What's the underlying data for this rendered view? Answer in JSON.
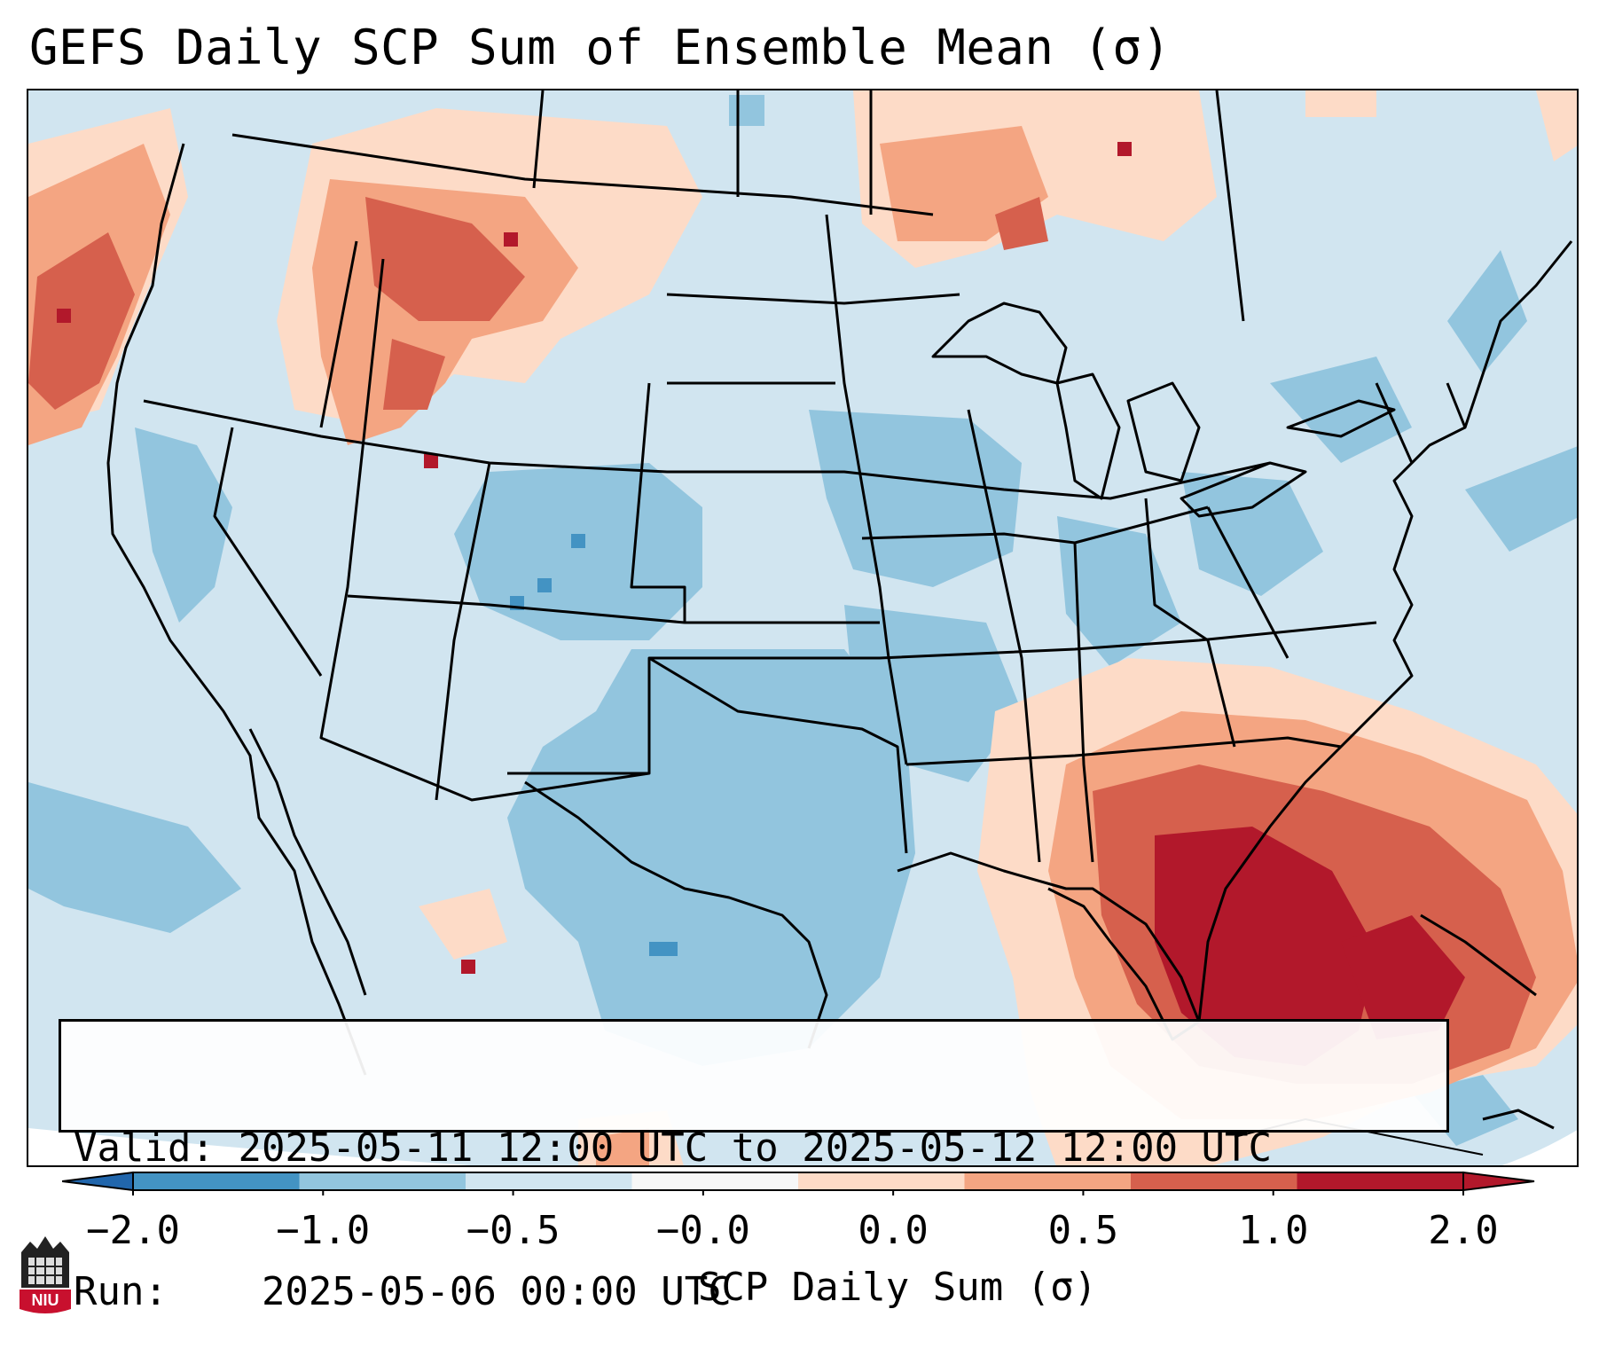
{
  "title": "GEFS Daily SCP Sum of Ensemble Mean (σ)",
  "info": {
    "valid_label": "Valid:",
    "valid_value": "2025-05-11 12:00 UTC to 2025-05-12 12:00 UTC",
    "run_label": "Run:",
    "run_value": "2025-05-06 00:00 UTC"
  },
  "colorbar": {
    "label": "SCP Daily Sum (σ)",
    "ticks": [
      "−2.0",
      "−1.0",
      "−0.5",
      "−0.0",
      "0.0",
      "0.5",
      "1.0",
      "2.0"
    ],
    "extend": "both",
    "colors": [
      "#4393c3",
      "#92c5de",
      "#d1e5f0",
      "#f7f7f7",
      "#fddbc7",
      "#f4a582",
      "#d6604d",
      "#b2182b"
    ]
  },
  "logo": {
    "text": "NIU"
  }
}
